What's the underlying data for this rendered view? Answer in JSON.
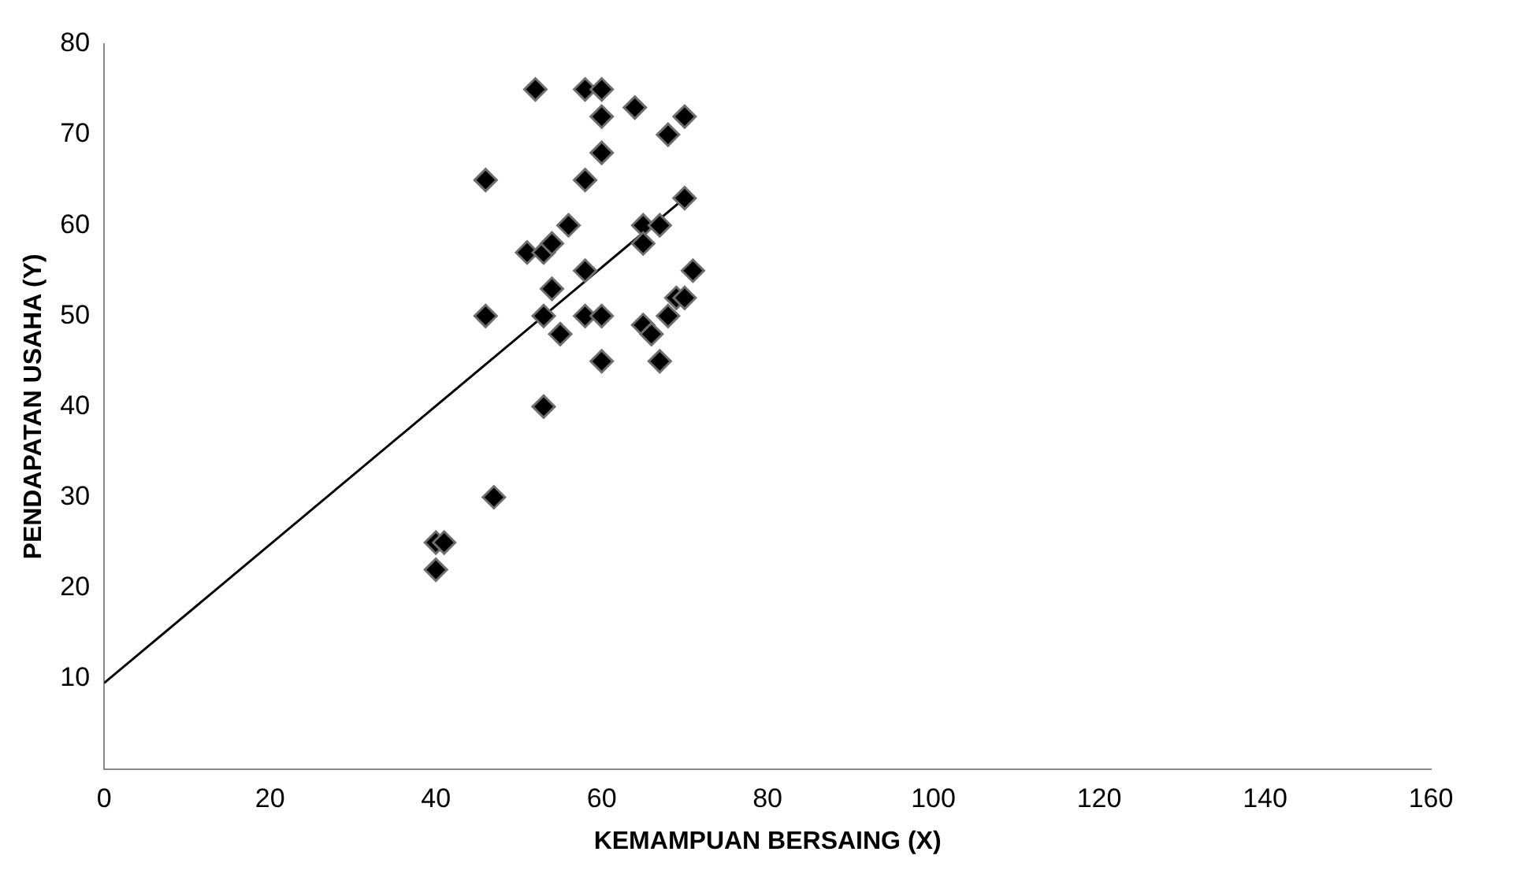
{
  "chart_data": {
    "type": "scatter",
    "xlabel": "KEMAMPUAN BERSAING (X)",
    "ylabel": "PENDAPATAN USAHA (Y)",
    "xlim": [
      0,
      160
    ],
    "xticks": [
      0,
      20,
      40,
      60,
      80,
      100,
      120,
      140,
      160
    ],
    "ylim": [
      0,
      80
    ],
    "yticks": [
      10,
      20,
      30,
      40,
      50,
      60,
      70,
      80
    ],
    "grid": false,
    "legend": false,
    "marker": "diamond",
    "series": [
      {
        "color": "#000000",
        "x": [
          52,
          58,
          60,
          64,
          60,
          70,
          68,
          60,
          46,
          58,
          70,
          51,
          53,
          54,
          56,
          65,
          67,
          65,
          58,
          71,
          54,
          46,
          53,
          55,
          58,
          60,
          60,
          53,
          65,
          66,
          68,
          69,
          70,
          67,
          47,
          40,
          41,
          40
        ],
        "values": [
          75,
          75,
          75,
          73,
          72,
          72,
          70,
          68,
          65,
          65,
          63,
          57,
          57,
          58,
          60,
          60,
          60,
          58,
          55,
          55,
          53,
          50,
          50,
          48,
          50,
          50,
          45,
          40,
          49,
          48,
          50,
          52,
          52,
          45,
          30,
          25,
          25,
          22
        ]
      },
      {
        "type": "line",
        "color": "#000000",
        "x": [
          0,
          70
        ],
        "values": [
          9.5,
          63
        ],
        "marker": "none"
      }
    ]
  }
}
